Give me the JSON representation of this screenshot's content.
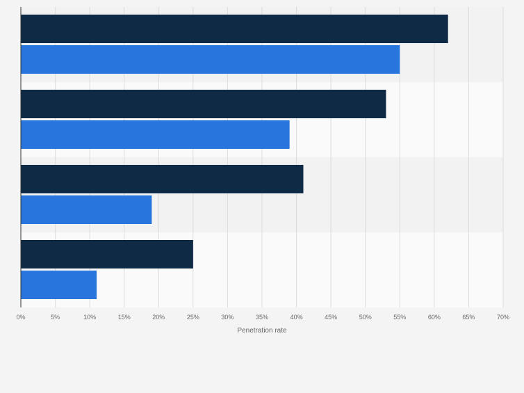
{
  "chart_data": {
    "type": "bar",
    "orientation": "horizontal",
    "title": "",
    "xlabel": "Penetration rate",
    "ylabel": "",
    "xlim": [
      0,
      70
    ],
    "grid": true,
    "categories": [
      "",
      "",
      "",
      ""
    ],
    "series": [
      {
        "name": "",
        "color": "#0f2a45",
        "values": [
          62,
          53,
          41,
          25
        ]
      },
      {
        "name": "",
        "color": "#2876dd",
        "values": [
          55,
          39,
          19,
          11
        ]
      }
    ],
    "ticks": [
      "0%",
      "5%",
      "10%",
      "15%",
      "20%",
      "25%",
      "30%",
      "35%",
      "40%",
      "45%",
      "50%",
      "55%",
      "60%",
      "65%",
      "70%"
    ]
  }
}
